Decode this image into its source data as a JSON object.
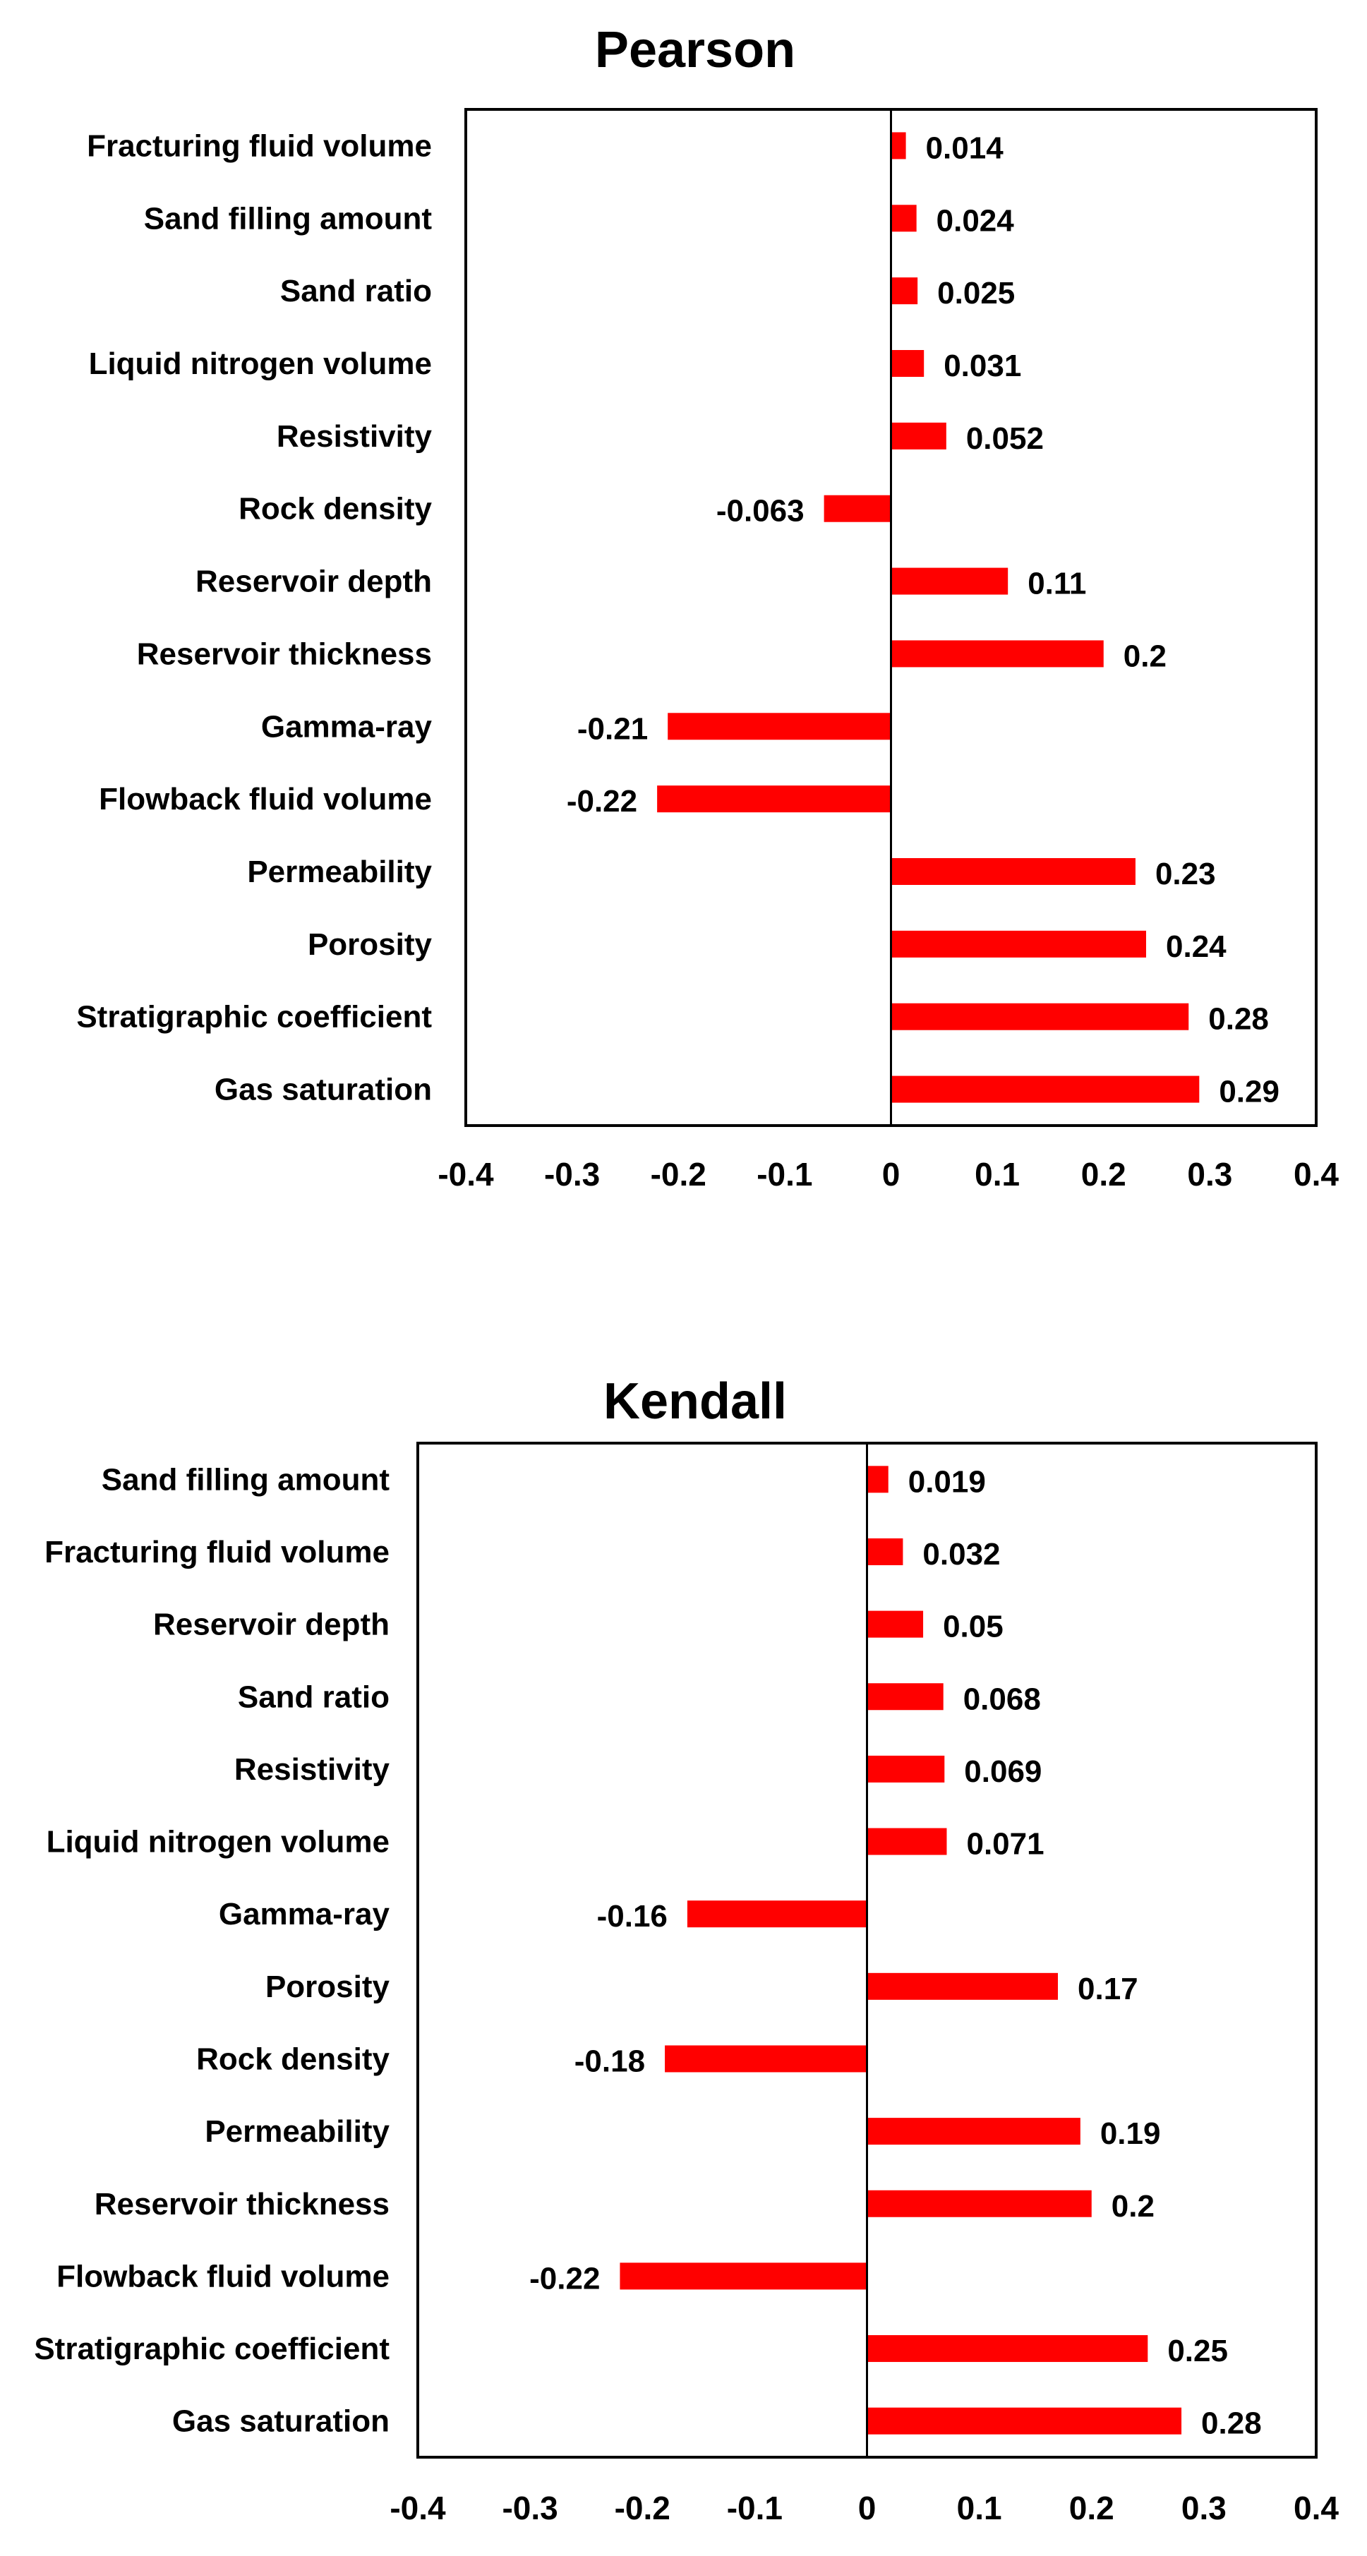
{
  "chart_data": [
    {
      "type": "bar",
      "orientation": "horizontal",
      "title": "Pearson",
      "categories": [
        "Fracturing fluid volume",
        "Sand filling amount",
        "Sand ratio",
        "Liquid nitrogen volume",
        "Resistivity",
        "Rock density",
        "Reservoir depth",
        "Reservoir thickness",
        "Gamma-ray",
        "Flowback fluid volume",
        "Permeability",
        "Porosity",
        "Stratigraphic coefficient",
        "Gas saturation"
      ],
      "values": [
        0.014,
        0.024,
        0.025,
        0.031,
        0.052,
        -0.063,
        0.11,
        0.2,
        -0.21,
        -0.22,
        0.23,
        0.24,
        0.28,
        0.29
      ],
      "value_labels": [
        "0.014",
        "0.024",
        "0.025",
        "0.031",
        "0.052",
        "-0.063",
        "0.11",
        "0.2",
        "-0.21",
        "-0.22",
        "0.23",
        "0.24",
        "0.28",
        "0.29"
      ],
      "xlim": [
        -0.4,
        0.4
      ],
      "xticks": [
        "-0.4",
        "-0.3",
        "-0.2",
        "-0.1",
        "0",
        "0.1",
        "0.2",
        "0.3",
        "0.4"
      ],
      "bar_color": "#ff0000",
      "xlabel": "",
      "ylabel": ""
    },
    {
      "type": "bar",
      "orientation": "horizontal",
      "title": "Kendall",
      "categories": [
        "Sand filling amount",
        "Fracturing fluid volume",
        "Reservoir depth",
        "Sand ratio",
        "Resistivity",
        "Liquid nitrogen volume",
        "Gamma-ray",
        "Porosity",
        "Rock density",
        "Permeability",
        "Reservoir thickness",
        "Flowback fluid volume",
        "Stratigraphic coefficient",
        "Gas saturation"
      ],
      "values": [
        0.019,
        0.032,
        0.05,
        0.068,
        0.069,
        0.071,
        -0.16,
        0.17,
        -0.18,
        0.19,
        0.2,
        -0.22,
        0.25,
        0.28
      ],
      "value_labels": [
        "0.019",
        "0.032",
        "0.05",
        "0.068",
        "0.069",
        "0.071",
        "-0.16",
        "0.17",
        "-0.18",
        "0.19",
        "0.2",
        "-0.22",
        "0.25",
        "0.28"
      ],
      "xlim": [
        -0.4,
        0.4
      ],
      "xticks": [
        "-0.4",
        "-0.3",
        "-0.2",
        "-0.1",
        "0",
        "0.1",
        "0.2",
        "0.3",
        "0.4"
      ],
      "bar_color": "#ff0000",
      "xlabel": "",
      "ylabel": ""
    }
  ]
}
